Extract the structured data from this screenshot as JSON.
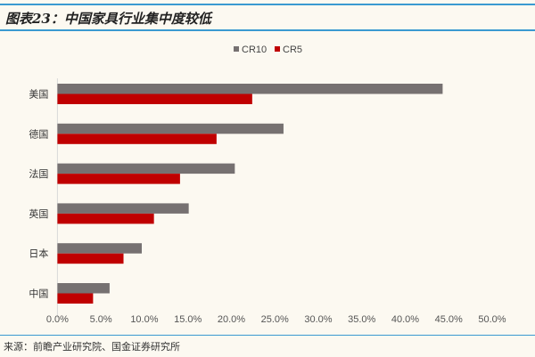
{
  "header": {
    "title": "图表23：中国家具行业集中度较低"
  },
  "footer": {
    "source": "来源：前瞻产业研究院、国金证券研究所"
  },
  "chart_data": {
    "type": "bar",
    "orientation": "horizontal",
    "title": "图表23：中国家具行业集中度较低",
    "categories": [
      "美国",
      "德国",
      "法国",
      "英国",
      "日本",
      "中国"
    ],
    "series": [
      {
        "name": "CR10",
        "color": "#767171",
        "values": [
          44.3,
          26.0,
          20.4,
          15.1,
          9.7,
          6.0
        ]
      },
      {
        "name": "CR5",
        "color": "#c00000",
        "values": [
          22.4,
          18.3,
          14.1,
          11.1,
          7.6,
          4.1
        ]
      }
    ],
    "xlim": [
      0,
      50
    ],
    "xticks": [
      "0.0%",
      "5.0%",
      "10.0%",
      "15.0%",
      "20.0%",
      "25.0%",
      "30.0%",
      "35.0%",
      "40.0%",
      "45.0%",
      "50.0%"
    ],
    "xlabel": "",
    "ylabel": "",
    "grid": false,
    "legend": "top-center"
  }
}
